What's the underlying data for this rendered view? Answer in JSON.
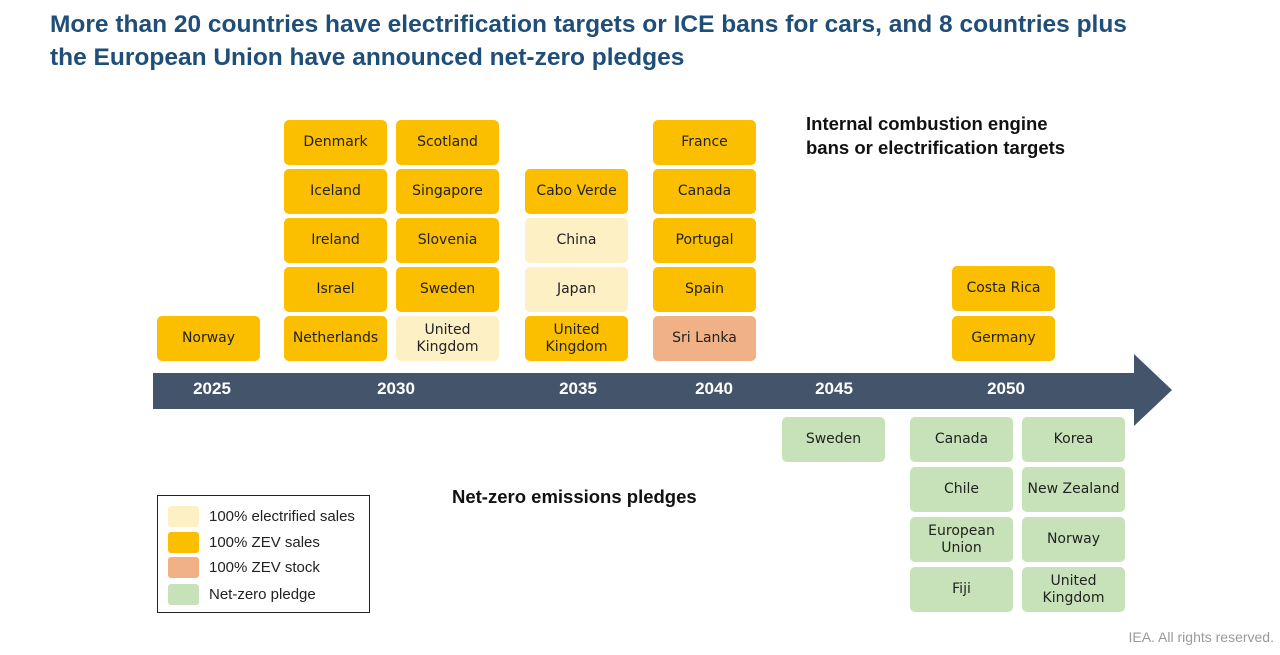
{
  "title": {
    "line1": "More than 20 countries have electrification targets or ICE bans for cars, and 8 countries plus",
    "line2": "the European Union have announced net-zero pledges"
  },
  "headings": {
    "ice": {
      "line1": "Internal combustion engine",
      "line2": "bans or electrification targets"
    },
    "netzero": "Net-zero emissions pledges"
  },
  "years": [
    "2025",
    "2030",
    "2035",
    "2040",
    "2045",
    "2050"
  ],
  "ice_targets": {
    "y2025": [
      "Norway"
    ],
    "y2030_a": [
      "Denmark",
      "Iceland",
      "Ireland",
      "Israel",
      "Netherlands"
    ],
    "y2030_b": [
      "Scotland",
      "Singapore",
      "Slovenia",
      "Sweden",
      "United Kingdom"
    ],
    "y2035": [
      "Cabo Verde",
      "China",
      "Japan",
      "United Kingdom"
    ],
    "y2040": [
      "France",
      "Canada",
      "Portugal",
      "Spain",
      "Sri Lanka"
    ],
    "y2050": [
      "Costa Rica",
      "Germany"
    ]
  },
  "net_zero": {
    "y2045": [
      "Sweden"
    ],
    "y2050_a": [
      "Canada",
      "Chile",
      "European Union",
      "Fiji"
    ],
    "y2050_b": [
      "Korea",
      "New Zealand",
      "Norway",
      "United Kingdom"
    ]
  },
  "legend": [
    {
      "label": "100% electrified sales",
      "color": "#fdf0c4"
    },
    {
      "label": "100% ZEV sales",
      "color": "#fbbf00"
    },
    {
      "label": "100% ZEV stock",
      "color": "#f1b186"
    },
    {
      "label": "Net-zero pledge",
      "color": "#c7e2b8"
    }
  ],
  "colors": {
    "arrow": "#44546a",
    "title": "#1f4e79"
  },
  "footer": "IEA. All rights reserved."
}
